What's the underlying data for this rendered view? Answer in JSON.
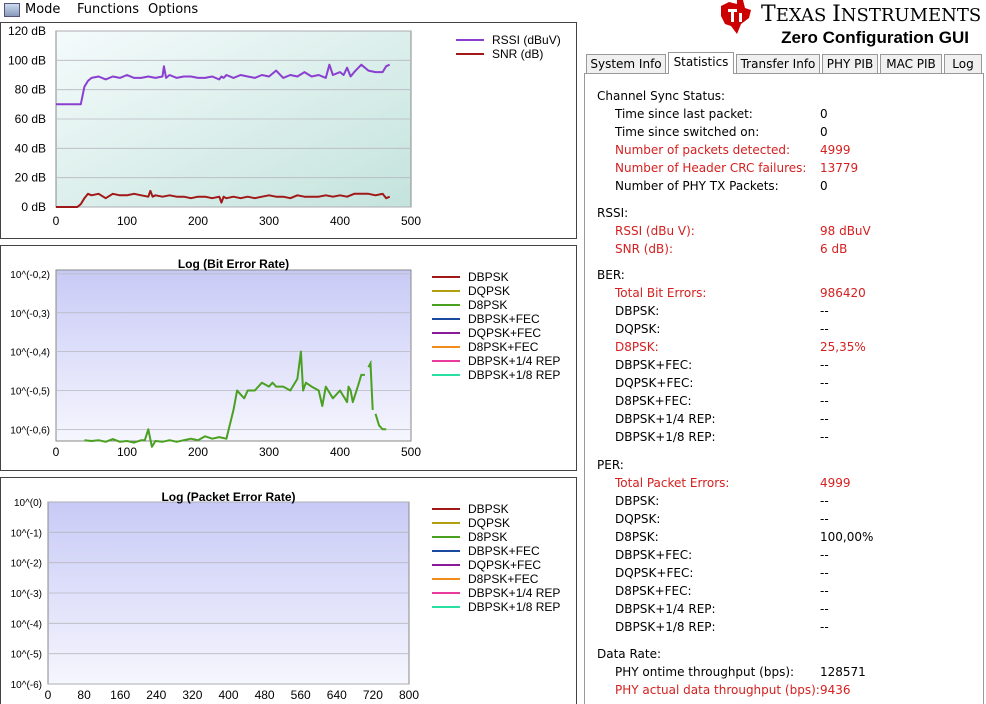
{
  "menu": {
    "items": [
      "Mode",
      "Functions",
      "Options"
    ]
  },
  "brand": {
    "company_big1": "T",
    "company_small1": "EXAS ",
    "company_big2": "I",
    "company_small2": "NSTRUMENTS",
    "app_title": "Zero Configuration GUI"
  },
  "tabs": [
    {
      "label": "System Info",
      "active": false
    },
    {
      "label": "Statistics",
      "active": true
    },
    {
      "label": "Transfer Info",
      "active": false
    },
    {
      "label": "PHY PIB",
      "active": false
    },
    {
      "label": "MAC PIB",
      "active": false
    },
    {
      "label": "Log",
      "active": false
    }
  ],
  "stats": [
    {
      "section": "Channel Sync Status:",
      "rows": [
        {
          "label": "Time since last packet:",
          "value": "0",
          "highlight": false
        },
        {
          "label": "Time since switched on:",
          "value": "0",
          "highlight": false
        },
        {
          "label": "Number of packets detected:",
          "value": "4999",
          "highlight": true
        },
        {
          "label": "Number of Header CRC failures:",
          "value": "13779",
          "highlight": true
        },
        {
          "label": "Number of PHY TX Packets:",
          "value": "0",
          "highlight": false
        }
      ]
    },
    {
      "section": "RSSI:",
      "rows": [
        {
          "label": "RSSI (dBu V):",
          "value": "98 dBuV",
          "highlight": true
        },
        {
          "label": "SNR (dB):",
          "value": "6 dB",
          "highlight": true
        }
      ]
    },
    {
      "section": "BER:",
      "rows": [
        {
          "label": "Total Bit Errors:",
          "value": "986420",
          "highlight": true
        },
        {
          "label": "DBPSK:",
          "value": "--",
          "highlight": false
        },
        {
          "label": "DQPSK:",
          "value": "--",
          "highlight": false
        },
        {
          "label": "D8PSK:",
          "value": "25,35%",
          "highlight": true
        },
        {
          "label": "DBPSK+FEC:",
          "value": "--",
          "highlight": false
        },
        {
          "label": "DQPSK+FEC:",
          "value": "--",
          "highlight": false
        },
        {
          "label": "D8PSK+FEC:",
          "value": "--",
          "highlight": false
        },
        {
          "label": "DBPSK+1/4 REP:",
          "value": "--",
          "highlight": false
        },
        {
          "label": "DBPSK+1/8 REP:",
          "value": "--",
          "highlight": false
        }
      ]
    },
    {
      "section": "PER:",
      "rows": [
        {
          "label": "Total Packet Errors:",
          "value": "4999",
          "highlight": true
        },
        {
          "label": "DBPSK:",
          "value": "--",
          "highlight": false
        },
        {
          "label": "DQPSK:",
          "value": "--",
          "highlight": false
        },
        {
          "label": "D8PSK:",
          "value": "100,00%",
          "highlight": false
        },
        {
          "label": "DBPSK+FEC:",
          "value": "--",
          "highlight": false
        },
        {
          "label": "DQPSK+FEC:",
          "value": "--",
          "highlight": false
        },
        {
          "label": "D8PSK+FEC:",
          "value": "--",
          "highlight": false
        },
        {
          "label": "DBPSK+1/4 REP:",
          "value": "--",
          "highlight": false
        },
        {
          "label": "DBPSK+1/8 REP:",
          "value": "--",
          "highlight": false
        }
      ]
    },
    {
      "section": "Data Rate:",
      "rows": [
        {
          "label": "PHY ontime throughput (bps):",
          "value": "128571",
          "highlight": false
        },
        {
          "label": "PHY actual data throughput (bps):",
          "value": "9436",
          "highlight": true
        }
      ]
    }
  ],
  "colors": {
    "highlight": "#d42020",
    "ti_red": "#cc0000"
  },
  "chart_data": [
    {
      "type": "line",
      "title": "",
      "xlabel": "",
      "ylabel": "",
      "xlim": [
        0,
        500
      ],
      "ylim": [
        0,
        120
      ],
      "xticks": [
        "0",
        "100",
        "200",
        "300",
        "400",
        "500"
      ],
      "yticks": [
        "0 dB",
        "20 dB",
        "40 dB",
        "60 dB",
        "80 dB",
        "100 dB",
        "120 dB"
      ],
      "background": "gradient",
      "series": [
        {
          "name": "RSSI (dBuV)",
          "color": "#8a3fd0",
          "x": [
            0,
            35,
            40,
            45,
            50,
            60,
            70,
            80,
            90,
            100,
            110,
            120,
            130,
            140,
            150,
            152,
            155,
            160,
            170,
            180,
            190,
            200,
            210,
            220,
            230,
            233,
            236,
            240,
            250,
            260,
            270,
            280,
            290,
            300,
            310,
            320,
            330,
            340,
            350,
            360,
            370,
            380,
            385,
            390,
            400,
            405,
            410,
            415,
            420,
            430,
            440,
            450,
            460,
            465,
            470
          ],
          "y": [
            70,
            70,
            82,
            86,
            88,
            89,
            87,
            89,
            88,
            90,
            88,
            88,
            89,
            88,
            89,
            96,
            88,
            90,
            88,
            89,
            89,
            88,
            88,
            89,
            87,
            89,
            88,
            90,
            88,
            90,
            89,
            88,
            90,
            89,
            93,
            88,
            90,
            89,
            92,
            89,
            90,
            88,
            97,
            90,
            92,
            90,
            95,
            89,
            92,
            97,
            93,
            92,
            92,
            96,
            97
          ]
        },
        {
          "name": "SNR (dB)",
          "color": "#a01818",
          "x": [
            0,
            30,
            35,
            40,
            45,
            50,
            60,
            70,
            80,
            90,
            100,
            110,
            120,
            130,
            133,
            136,
            140,
            150,
            160,
            170,
            180,
            190,
            200,
            210,
            220,
            230,
            233,
            236,
            240,
            250,
            260,
            270,
            280,
            290,
            300,
            310,
            320,
            330,
            340,
            350,
            360,
            370,
            380,
            390,
            400,
            410,
            420,
            430,
            440,
            450,
            460,
            465,
            470
          ],
          "y": [
            0,
            0,
            2,
            6,
            9,
            8,
            9,
            6,
            9,
            8,
            8,
            9,
            8,
            7,
            11,
            7,
            8,
            7,
            8,
            7,
            7,
            6,
            7,
            7,
            6,
            7,
            3,
            7,
            6,
            7,
            6,
            7,
            6,
            7,
            8,
            7,
            7,
            6,
            8,
            7,
            7,
            7,
            8,
            7,
            8,
            7,
            9,
            9,
            9,
            8,
            9,
            6,
            7
          ]
        }
      ],
      "legend": "top-right"
    },
    {
      "type": "line",
      "title": "Log (Bit Error Rate)",
      "xlim": [
        0,
        500
      ],
      "ylim": [
        -0.63,
        -0.19
      ],
      "xticks": [
        "0",
        "100",
        "200",
        "300",
        "400",
        "500"
      ],
      "yticks": [
        "10^(-0,2)",
        "10^(-0,3)",
        "10^(-0,4)",
        "10^(-0,5)",
        "10^(-0,6)"
      ],
      "series": [
        {
          "name": "DBPSK",
          "color": "#a01818",
          "x": [],
          "y": []
        },
        {
          "name": "DQPSK",
          "color": "#b0a010",
          "x": [],
          "y": []
        },
        {
          "name": "D8PSK",
          "color": "#4aa020",
          "x": [
            40,
            50,
            60,
            70,
            80,
            90,
            100,
            110,
            120,
            125,
            130,
            135,
            140,
            150,
            160,
            170,
            180,
            190,
            200,
            210,
            220,
            230,
            240,
            250,
            255,
            260,
            265,
            270,
            280,
            290,
            300,
            305,
            310,
            320,
            330,
            340,
            345,
            348,
            352,
            360,
            370,
            375,
            380,
            390,
            400,
            410,
            412,
            415,
            418,
            425
          ],
          "y": [
            -0.628,
            -0.63,
            -0.628,
            -0.632,
            -0.625,
            -0.632,
            -0.63,
            -0.634,
            -0.628,
            -0.628,
            -0.6,
            -0.645,
            -0.63,
            -0.632,
            -0.628,
            -0.632,
            -0.628,
            -0.624,
            -0.628,
            -0.618,
            -0.624,
            -0.62,
            -0.624,
            -0.55,
            -0.5,
            -0.51,
            -0.52,
            -0.5,
            -0.5,
            -0.48,
            -0.49,
            -0.48,
            -0.49,
            -0.49,
            -0.5,
            -0.47,
            -0.4,
            -0.5,
            -0.48,
            -0.49,
            -0.5,
            -0.54,
            -0.49,
            -0.52,
            -0.5,
            -0.53,
            -0.49,
            -0.5,
            -0.53,
            -0.49
          ]
        },
        {
          "name": "DBPSK+FEC",
          "color": "#1a4aa0",
          "x": [],
          "y": []
        },
        {
          "name": "DQPSK+FEC",
          "color": "#8a1a9a",
          "x": [],
          "y": []
        },
        {
          "name": "D8PSK+FEC",
          "color": "#f08c1a",
          "x": [],
          "y": []
        },
        {
          "name": "DBPSK+1/4 REP",
          "color": "#ea3aa0",
          "x": [],
          "y": []
        },
        {
          "name": "DBPSK+1/8 REP",
          "color": "#2ae0a0",
          "x": [],
          "y": []
        }
      ],
      "extra_segments_d8psk": [
        {
          "x": [
            425,
            430,
            435
          ],
          "y": [
            -0.49,
            -0.46,
            -0.46
          ]
        },
        {
          "x": [
            440,
            443,
            446
          ],
          "y": [
            -0.44,
            -0.43,
            -0.55
          ]
        },
        {
          "x": [
            450,
            455,
            460,
            465
          ],
          "y": [
            -0.56,
            -0.59,
            -0.6,
            -0.6
          ]
        }
      ],
      "legend": "right"
    },
    {
      "type": "line",
      "title": "Log (Packet Error Rate)",
      "xlim": [
        0,
        800
      ],
      "ylim": [
        -6,
        0
      ],
      "xticks": [
        "0",
        "80",
        "160",
        "240",
        "320",
        "400",
        "480",
        "560",
        "640",
        "720",
        "800"
      ],
      "yticks": [
        "10^(0)",
        "10^(-1)",
        "10^(-2)",
        "10^(-3)",
        "10^(-4)",
        "10^(-5)",
        "10^(-6)"
      ],
      "series": [
        {
          "name": "DBPSK",
          "color": "#a01818",
          "x": [],
          "y": []
        },
        {
          "name": "DQPSK",
          "color": "#b0a010",
          "x": [],
          "y": []
        },
        {
          "name": "D8PSK",
          "color": "#4aa020",
          "x": [],
          "y": []
        },
        {
          "name": "DBPSK+FEC",
          "color": "#1a4aa0",
          "x": [],
          "y": []
        },
        {
          "name": "DQPSK+FEC",
          "color": "#8a1a9a",
          "x": [],
          "y": []
        },
        {
          "name": "D8PSK+FEC",
          "color": "#f08c1a",
          "x": [],
          "y": []
        },
        {
          "name": "DBPSK+1/4 REP",
          "color": "#ea3aa0",
          "x": [],
          "y": []
        },
        {
          "name": "DBPSK+1/8 REP",
          "color": "#2ae0a0",
          "x": [],
          "y": []
        }
      ],
      "legend": "right"
    }
  ]
}
